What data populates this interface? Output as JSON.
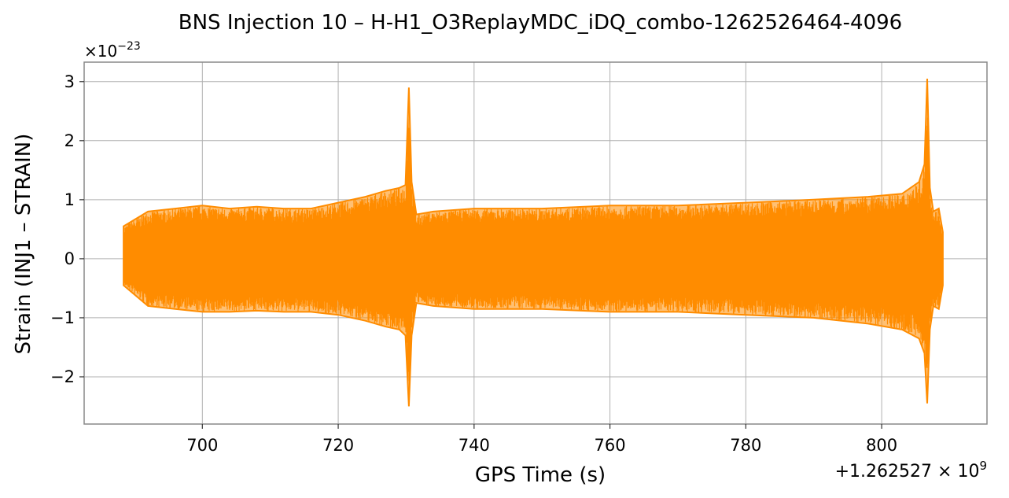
{
  "chart_data": {
    "type": "line",
    "title": "BNS Injection 10 – H-H1_O3ReplayMDC_iDQ_combo-1262526464-4096",
    "xlabel": "GPS Time (s)",
    "ylabel": "Strain (INJ1 – STRAIN)",
    "x_offset_label": "+1.262527 × 10",
    "x_offset_exponent": "9",
    "y_scale_label": "×10",
    "y_scale_exponent": "−23",
    "xlim": [
      682.6,
      815.5
    ],
    "ylim": [
      -2.8,
      3.33
    ],
    "xticks": [
      {
        "value": 700,
        "label": "700"
      },
      {
        "value": 720,
        "label": "720"
      },
      {
        "value": 740,
        "label": "740"
      },
      {
        "value": 760,
        "label": "760"
      },
      {
        "value": 780,
        "label": "780"
      },
      {
        "value": 800,
        "label": "800"
      }
    ],
    "yticks": [
      {
        "value": -2,
        "label": "−2"
      },
      {
        "value": -1,
        "label": "−1"
      },
      {
        "value": 0,
        "label": "0"
      },
      {
        "value": 1,
        "label": "1"
      },
      {
        "value": 2,
        "label": "2"
      },
      {
        "value": 3,
        "label": "3"
      }
    ],
    "grid": true,
    "series": [
      {
        "color": "#ff8c00",
        "envelope": {
          "x": [
            688.4,
            692,
            696,
            700,
            704,
            708,
            712,
            716,
            720,
            724,
            727,
            729,
            729.9,
            730.4,
            730.8,
            731.5,
            734,
            740,
            750,
            760,
            770,
            780,
            790,
            798,
            803,
            805.5,
            806.3,
            806.7,
            807.1,
            807.6,
            808.4,
            809.0
          ],
          "upper": [
            0.55,
            0.8,
            0.85,
            0.9,
            0.85,
            0.88,
            0.85,
            0.85,
            0.95,
            1.05,
            1.15,
            1.2,
            1.25,
            2.9,
            1.3,
            0.75,
            0.8,
            0.85,
            0.85,
            0.9,
            0.9,
            0.95,
            1.0,
            1.05,
            1.1,
            1.3,
            1.6,
            3.05,
            1.2,
            0.8,
            0.85,
            0.45
          ],
          "lower": [
            -0.45,
            -0.8,
            -0.85,
            -0.9,
            -0.9,
            -0.88,
            -0.9,
            -0.9,
            -0.95,
            -1.05,
            -1.15,
            -1.2,
            -1.3,
            -2.5,
            -1.3,
            -0.75,
            -0.8,
            -0.85,
            -0.85,
            -0.9,
            -0.9,
            -0.95,
            -1.0,
            -1.1,
            -1.2,
            -1.35,
            -1.6,
            -2.45,
            -1.2,
            -0.8,
            -0.85,
            -0.45
          ]
        }
      }
    ]
  }
}
